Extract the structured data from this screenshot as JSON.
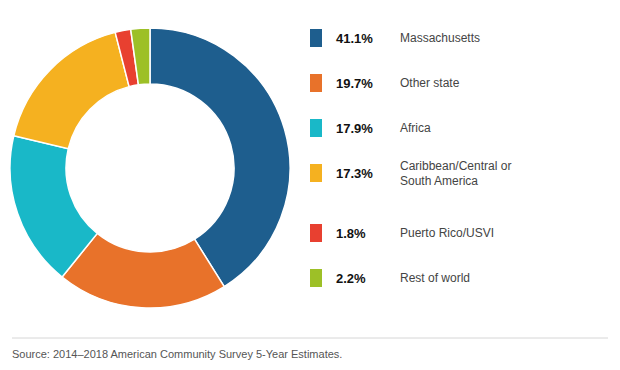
{
  "chart_data": {
    "type": "donut",
    "categories": [
      "Massachusetts",
      "Other state",
      "Africa",
      "Caribbean/Central or\nSouth America",
      "Puerto Rico/USVI",
      "Rest of world"
    ],
    "values": [
      41.1,
      19.7,
      17.9,
      17.3,
      1.8,
      2.2
    ],
    "value_labels": [
      "41.1%",
      "19.7%",
      "17.9%",
      "17.3%",
      "1.8%",
      "2.2%"
    ],
    "colors": [
      "#1e5e8e",
      "#e8722a",
      "#19b8c8",
      "#f5b120",
      "#e84030",
      "#9dc027"
    ],
    "legend": "right",
    "source": "Source: 2014–2018 American Community Survey 5-Year Estimates."
  }
}
